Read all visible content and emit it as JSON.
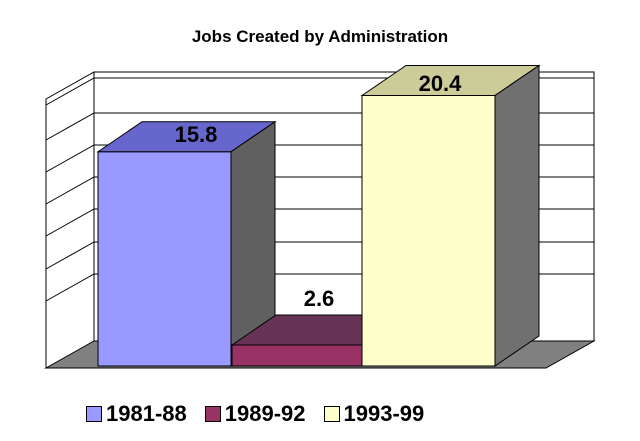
{
  "chart_data": {
    "type": "bar",
    "title": "Jobs Created by Administration",
    "categories": [
      "1981-88",
      "1989-92",
      "1993-99"
    ],
    "values": [
      15.8,
      2.6,
      20.4
    ],
    "data_labels": [
      "15.8",
      "2.6",
      "20.4"
    ],
    "ylim": [
      -2.6,
      20.4
    ],
    "grid": true,
    "legend_position": "bottom",
    "colors": {
      "series": [
        "#9999ff",
        "#993366",
        "#ffffcc"
      ],
      "tops": [
        "#6666cc",
        "#663355",
        "#cccc99"
      ],
      "sides": [
        "#606060",
        "#606060",
        "#707070"
      ]
    },
    "style": "3d-column"
  }
}
